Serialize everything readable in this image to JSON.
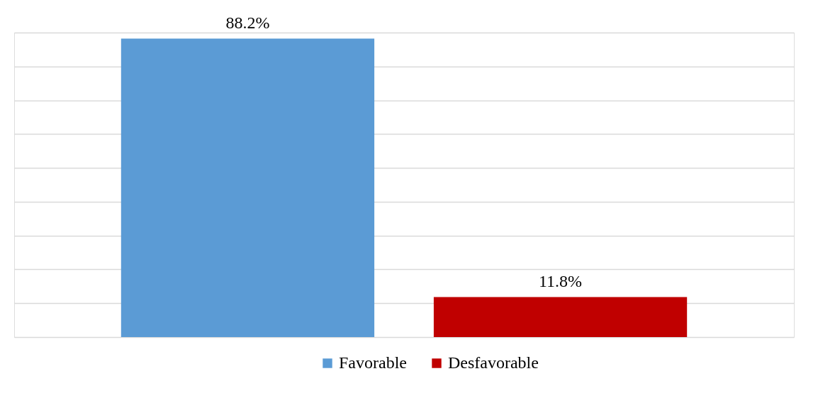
{
  "chart_data": {
    "type": "bar",
    "categories": [
      null
    ],
    "series": [
      {
        "name": "Favorable",
        "color": "#5b9bd5",
        "values": [
          88.2
        ],
        "value_labels": [
          "88.2%"
        ]
      },
      {
        "name": "Desfavorable",
        "color": "#c00000",
        "values": [
          11.8
        ],
        "value_labels": [
          "11.8%"
        ]
      }
    ],
    "grid": "y",
    "legend": "bottom"
  }
}
